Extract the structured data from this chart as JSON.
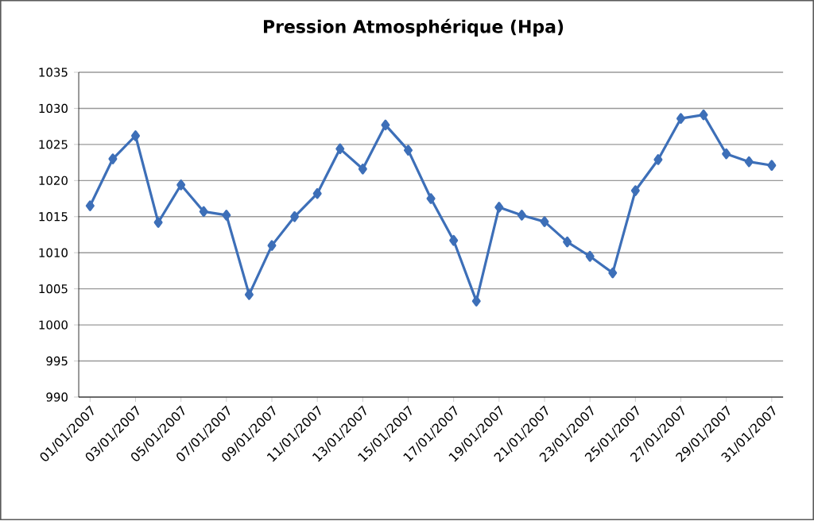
{
  "chart_data": {
    "type": "line",
    "title": "Pression Atmosphérique (Hpa)",
    "categories": [
      "01/01/2007",
      null,
      "03/01/2007",
      null,
      "05/01/2007",
      null,
      "07/01/2007",
      null,
      "09/01/2007",
      null,
      "11/01/2007",
      null,
      "13/01/2007",
      null,
      "15/01/2007",
      null,
      "17/01/2007",
      null,
      "19/01/2007",
      null,
      "21/01/2007",
      null,
      "23/01/2007",
      null,
      "25/01/2007",
      null,
      "27/01/2007",
      null,
      "29/01/2007",
      null,
      "31/01/2007"
    ],
    "series": [
      {
        "color": "#3d6fb8",
        "values": [
          1016.5,
          1023,
          1026.2,
          1014.2,
          1019.4,
          1015.7,
          1015.2,
          1004.2,
          1011,
          1015,
          1018.2,
          1024.4,
          1021.6,
          1027.7,
          1024.2,
          1017.5,
          1011.7,
          1003.3,
          1016.3,
          1015.2,
          1014.3,
          1011.5,
          1009.5,
          1007.2,
          1018.6,
          1022.9,
          1028.6,
          1029.1,
          1023.7,
          1022.6,
          1022.1
        ]
      }
    ],
    "ylim": [
      990,
      1035
    ],
    "yticks": [
      990,
      995,
      1000,
      1005,
      1010,
      1015,
      1020,
      1025,
      1030,
      1035
    ],
    "grid": "y",
    "marker": "diamond",
    "line_style": "solid"
  }
}
